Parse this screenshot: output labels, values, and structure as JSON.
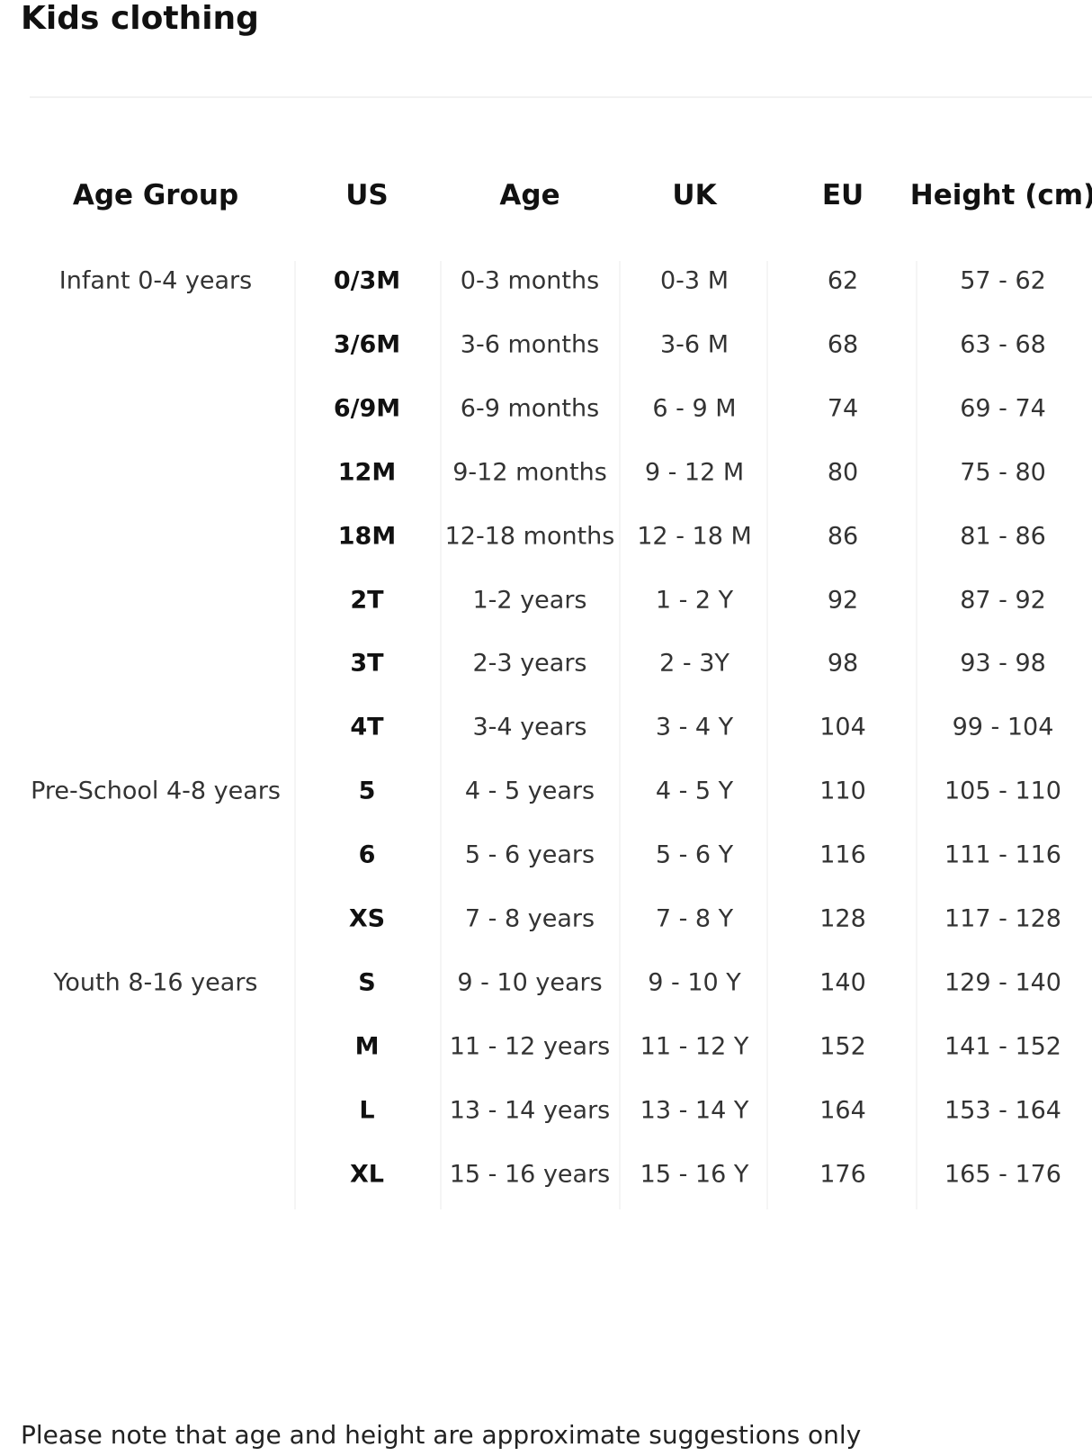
{
  "title": "Kids clothing",
  "table": {
    "headers": [
      "Age Group",
      "US",
      "Age",
      "UK",
      "EU",
      "Height (cm)"
    ],
    "rows": [
      {
        "age_group": "Infant 0-4 years",
        "us": "0/3M",
        "age": "0-3 months",
        "uk": "0-3 M",
        "eu": 62,
        "height": "57 - 62"
      },
      {
        "us": "3/6M",
        "age": "3-6 months",
        "uk": "3-6 M",
        "eu": 68,
        "height": "63 - 68"
      },
      {
        "us": "6/9M",
        "age": "6-9 months",
        "uk": "6 - 9 M",
        "eu": 74,
        "height": "69 - 74"
      },
      {
        "us": "12M",
        "age": "9-12 months",
        "uk": "9 - 12 M",
        "eu": 80,
        "height": "75 - 80"
      },
      {
        "us": "18M",
        "age": "12-18 months",
        "uk": "12 - 18 M",
        "eu": 86,
        "height": "81 - 86"
      },
      {
        "us": "2T",
        "age": "1-2 years",
        "uk": "1 - 2 Y",
        "eu": 92,
        "height": "87 - 92"
      },
      {
        "us": "3T",
        "age": "2-3 years",
        "uk": "2 - 3Y",
        "eu": 98,
        "height": "93 - 98"
      },
      {
        "us": "4T",
        "age": "3-4 years",
        "uk": "3 - 4 Y",
        "eu": 104,
        "height": "99 - 104"
      },
      {
        "age_group": "Pre-School 4-8 years",
        "us": "5",
        "age": "4 - 5 years",
        "uk": "4 - 5 Y",
        "eu": 110,
        "height": "105 - 110"
      },
      {
        "us": "6",
        "age": "5 - 6 years",
        "uk": "5 - 6 Y",
        "eu": 116,
        "height": "111 - 116"
      },
      {
        "us": "XS",
        "age": "7 - 8 years",
        "uk": "7 - 8 Y",
        "eu": 128,
        "height": "117 - 128"
      },
      {
        "age_group": "Youth 8-16 years",
        "us": "S",
        "age": "9 - 10 years",
        "uk": "9 - 10 Y",
        "eu": 140,
        "height": "129 - 140"
      },
      {
        "us": "M",
        "age": "11 - 12 years",
        "uk": "11 - 12 Y",
        "eu": 152,
        "height": "141 - 152"
      },
      {
        "us": "L",
        "age": "13 - 14 years",
        "uk": "13 - 14 Y",
        "eu": 164,
        "height": "153 - 164"
      },
      {
        "us": "XL",
        "age": "15 - 16 years",
        "uk": "15 - 16 Y",
        "eu": 176,
        "height": "165 - 176"
      }
    ]
  },
  "footnote": "Please note that age and height are approximate suggestions only"
}
